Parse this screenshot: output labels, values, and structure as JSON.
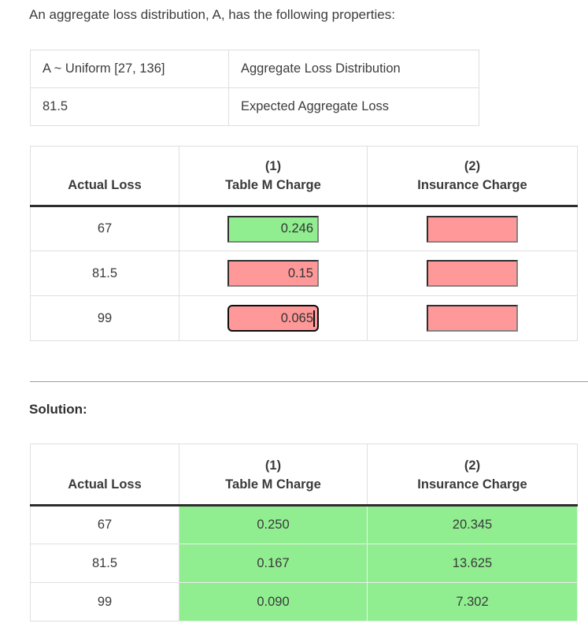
{
  "page": {
    "intro_text": "An aggregate loss distribution, A, has the following properties:",
    "solution_label": "Solution:"
  },
  "properties_table": {
    "rows": [
      {
        "value": "A ~ Uniform [27, 136]",
        "label": "Aggregate Loss Distribution"
      },
      {
        "value": "81.5",
        "label": "Expected Aggregate Loss"
      }
    ]
  },
  "question_table": {
    "header": {
      "actual_loss": "Actual Loss",
      "col1_index": "(1)",
      "col1_title": "Table M Charge",
      "col2_index": "(2)",
      "col2_title": "Insurance Charge"
    },
    "rows": [
      {
        "actual_loss": "67",
        "table_m_value": "0.246",
        "table_m_status": "correct",
        "insurance_value": "",
        "insurance_status": "incorrect"
      },
      {
        "actual_loss": "81.5",
        "table_m_value": "0.15",
        "table_m_status": "incorrect",
        "insurance_value": "",
        "insurance_status": "incorrect"
      },
      {
        "actual_loss": "99",
        "table_m_value": "0.065",
        "table_m_status": "incorrect",
        "table_m_focused": "true",
        "insurance_value": "",
        "insurance_status": "incorrect"
      }
    ]
  },
  "solution_table": {
    "header": {
      "actual_loss": "Actual Loss",
      "col1_index": "(1)",
      "col1_title": "Table M Charge",
      "col2_index": "(2)",
      "col2_title": "Insurance Charge"
    },
    "rows": [
      {
        "actual_loss": "67",
        "table_m_value": "0.250",
        "insurance_value": "20.345"
      },
      {
        "actual_loss": "81.5",
        "table_m_value": "0.167",
        "insurance_value": "13.625"
      },
      {
        "actual_loss": "99",
        "table_m_value": "0.090",
        "insurance_value": "7.302"
      }
    ]
  },
  "colors": {
    "correct_green": "#90ee90",
    "incorrect_red": "#ff9898",
    "solution_cell_green": "#90ee90",
    "header_rule_black": "#2d2d2d"
  }
}
